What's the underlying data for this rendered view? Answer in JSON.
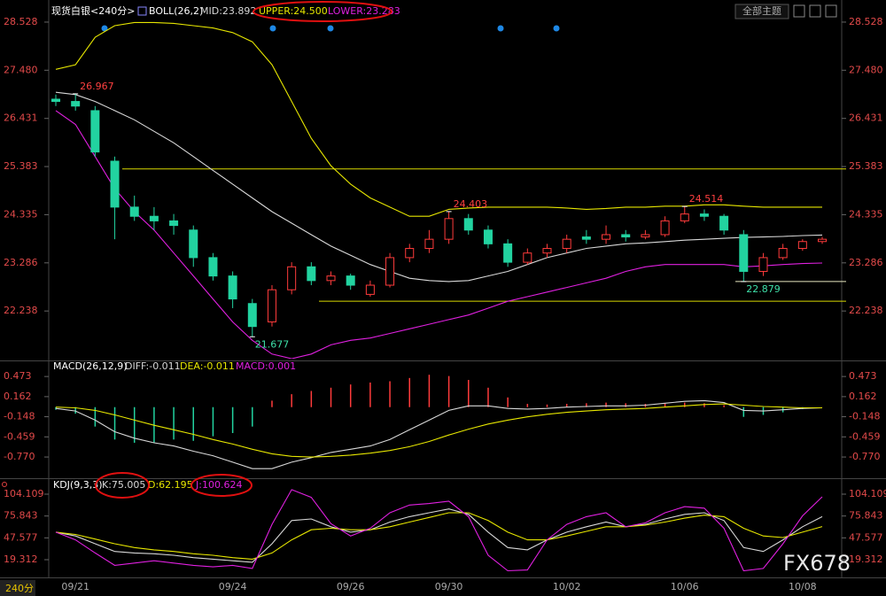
{
  "header": {
    "symbol": "现货白银<240分>",
    "button": "全部主题"
  },
  "period_label": "240分",
  "watermark": "FX678",
  "chart_data": [
    {
      "type": "candlestick",
      "title": "BOLL(26,2)",
      "categories": [
        null,
        "09/21",
        null,
        null,
        null,
        null,
        null,
        null,
        null,
        "09/24",
        null,
        null,
        null,
        null,
        null,
        "09/26",
        null,
        null,
        null,
        null,
        "09/30",
        null,
        null,
        null,
        null,
        null,
        "10/02",
        null,
        null,
        null,
        null,
        null,
        "10/06",
        null,
        null,
        null,
        null,
        null,
        "10/08",
        null
      ],
      "open": [
        26.85,
        26.8,
        26.6,
        25.5,
        24.5,
        24.3,
        24.2,
        24.0,
        23.4,
        23.0,
        22.4,
        22.0,
        22.7,
        23.2,
        22.9,
        23.0,
        22.6,
        22.8,
        23.4,
        23.6,
        23.8,
        24.25,
        24.0,
        23.7,
        23.3,
        23.5,
        23.6,
        23.85,
        23.8,
        23.9,
        23.85,
        23.9,
        24.2,
        24.35,
        24.3,
        23.9,
        23.1,
        23.4,
        23.6,
        23.75
      ],
      "high": [
        26.95,
        26.967,
        26.7,
        25.6,
        24.75,
        24.5,
        24.35,
        24.1,
        23.5,
        23.1,
        22.5,
        22.8,
        23.3,
        23.3,
        23.1,
        23.05,
        22.9,
        23.5,
        23.7,
        24.0,
        24.403,
        24.35,
        24.1,
        23.8,
        23.6,
        23.7,
        23.9,
        24.0,
        24.1,
        24.0,
        24.0,
        24.3,
        24.514,
        24.45,
        24.35,
        24.0,
        23.5,
        23.7,
        23.8,
        23.85
      ],
      "low": [
        26.7,
        26.6,
        25.6,
        23.8,
        24.2,
        24.0,
        23.9,
        23.2,
        22.9,
        22.3,
        21.677,
        21.9,
        22.6,
        22.8,
        22.8,
        22.7,
        22.55,
        22.75,
        23.3,
        23.5,
        23.7,
        23.9,
        23.6,
        23.2,
        23.25,
        23.4,
        23.5,
        23.7,
        23.7,
        23.75,
        23.8,
        23.85,
        24.15,
        24.2,
        23.9,
        22.879,
        23.0,
        23.35,
        23.55,
        23.7
      ],
      "close": [
        26.8,
        26.7,
        25.7,
        24.5,
        24.3,
        24.2,
        24.1,
        23.4,
        23.0,
        22.5,
        21.9,
        22.7,
        23.2,
        22.9,
        23.0,
        22.8,
        22.8,
        23.4,
        23.6,
        23.8,
        24.25,
        24.0,
        23.7,
        23.3,
        23.5,
        23.6,
        23.8,
        23.8,
        23.9,
        23.85,
        23.9,
        24.2,
        24.35,
        24.3,
        24.0,
        23.1,
        23.4,
        23.6,
        23.75,
        23.8
      ],
      "up_color": "#ff3b3b",
      "down_color": "#22d3a0",
      "series": [
        {
          "name": "MID:23.892",
          "color": "#d8d8d8",
          "values": [
            27.0,
            26.95,
            26.8,
            26.6,
            26.4,
            26.15,
            25.9,
            25.6,
            25.3,
            25.0,
            24.7,
            24.4,
            24.15,
            23.9,
            23.65,
            23.45,
            23.25,
            23.1,
            22.95,
            22.9,
            22.88,
            22.9,
            23.0,
            23.1,
            23.25,
            23.4,
            23.5,
            23.6,
            23.65,
            23.7,
            23.72,
            23.75,
            23.78,
            23.8,
            23.82,
            23.84,
            23.85,
            23.86,
            23.88,
            23.892
          ]
        },
        {
          "name": "UPPER:24.500",
          "color": "#e6e600",
          "values": [
            27.5,
            27.6,
            28.2,
            28.45,
            28.52,
            28.52,
            28.5,
            28.45,
            28.4,
            28.3,
            28.1,
            27.6,
            26.8,
            26.0,
            25.4,
            25.0,
            24.7,
            24.5,
            24.3,
            24.3,
            24.45,
            24.48,
            24.5,
            24.5,
            24.5,
            24.5,
            24.48,
            24.45,
            24.47,
            24.5,
            24.5,
            24.52,
            24.52,
            24.55,
            24.55,
            24.52,
            24.5,
            24.5,
            24.5,
            24.5
          ]
        },
        {
          "name": "LOWER:23.283",
          "color": "#e020e0",
          "values": [
            26.6,
            26.3,
            25.6,
            24.9,
            24.4,
            24.0,
            23.5,
            23.0,
            22.5,
            22.0,
            21.6,
            21.3,
            21.2,
            21.3,
            21.5,
            21.6,
            21.65,
            21.75,
            21.85,
            21.95,
            22.05,
            22.15,
            22.3,
            22.45,
            22.55,
            22.65,
            22.75,
            22.85,
            22.95,
            23.1,
            23.2,
            23.25,
            23.25,
            23.25,
            23.25,
            23.2,
            23.22,
            23.25,
            23.27,
            23.283
          ]
        }
      ],
      "reference_lines": [
        25.33,
        22.45,
        22.879
      ],
      "ylim": [
        21.2,
        28.72
      ],
      "yticks": [
        28.528,
        {
          "value": 27.48,
          "label": "27.480"
        },
        26.431,
        25.383,
        24.335,
        23.286,
        22.238
      ]
    },
    {
      "type": "macd",
      "title": "MACD(26,12,9)",
      "series": [
        {
          "name": "DIFF:-0.011",
          "color": "#d8d8d8",
          "values": [
            -0.02,
            -0.06,
            -0.2,
            -0.38,
            -0.48,
            -0.55,
            -0.6,
            -0.68,
            -0.75,
            -0.85,
            -0.95,
            -0.95,
            -0.85,
            -0.78,
            -0.7,
            -0.65,
            -0.6,
            -0.5,
            -0.35,
            -0.2,
            -0.05,
            0.02,
            0.02,
            -0.02,
            -0.03,
            -0.02,
            0.0,
            0.01,
            0.02,
            0.02,
            0.03,
            0.06,
            0.09,
            0.1,
            0.07,
            -0.05,
            -0.06,
            -0.04,
            -0.02,
            -0.011
          ]
        },
        {
          "name": "DEA:-0.011",
          "color": "#e6e600",
          "values": [
            0.0,
            -0.01,
            -0.05,
            -0.12,
            -0.2,
            -0.28,
            -0.35,
            -0.42,
            -0.5,
            -0.57,
            -0.65,
            -0.72,
            -0.76,
            -0.77,
            -0.76,
            -0.74,
            -0.71,
            -0.67,
            -0.61,
            -0.53,
            -0.43,
            -0.34,
            -0.26,
            -0.2,
            -0.15,
            -0.11,
            -0.08,
            -0.06,
            -0.04,
            -0.03,
            -0.02,
            0.0,
            0.02,
            0.04,
            0.05,
            0.03,
            0.01,
            0.0,
            -0.01,
            -0.011
          ]
        }
      ],
      "bars": {
        "name": "MACD:0.001",
        "color": "#e020e0",
        "up_color": "#ff3b3b",
        "down_color": "#22d3a0",
        "values": [
          -0.04,
          -0.1,
          -0.3,
          -0.5,
          -0.55,
          -0.55,
          -0.5,
          -0.52,
          -0.45,
          -0.4,
          -0.3,
          0.1,
          0.2,
          0.25,
          0.3,
          0.35,
          0.38,
          0.4,
          0.45,
          0.5,
          0.48,
          0.42,
          0.3,
          0.15,
          0.05,
          0.04,
          0.05,
          0.06,
          0.07,
          0.06,
          0.05,
          0.06,
          0.07,
          0.06,
          0.03,
          -0.15,
          -0.12,
          -0.08,
          -0.03,
          0.001
        ]
      },
      "ylim": [
        -1.07,
        0.68
      ],
      "yticks": [
        0.473,
        0.162,
        -0.148,
        -0.459,
        {
          "value": -0.77,
          "label": "-0.770"
        }
      ]
    },
    {
      "type": "line",
      "title": "KDJ(9,3,3)",
      "series": [
        {
          "name": "K:75.005",
          "color": "#d8d8d8",
          "values": [
            55,
            50,
            40,
            30,
            28,
            27,
            25,
            22,
            20,
            18,
            16,
            40,
            70,
            72,
            62,
            55,
            58,
            68,
            75,
            80,
            85,
            78,
            55,
            35,
            32,
            45,
            55,
            62,
            68,
            62,
            65,
            72,
            78,
            80,
            70,
            35,
            30,
            45,
            62,
            75.005
          ]
        },
        {
          "name": "D:62.195",
          "color": "#e6e600",
          "values": [
            55,
            52,
            46,
            40,
            35,
            32,
            30,
            27,
            25,
            22,
            20,
            28,
            45,
            58,
            60,
            58,
            58,
            62,
            68,
            74,
            80,
            80,
            70,
            55,
            45,
            45,
            50,
            56,
            62,
            62,
            64,
            68,
            73,
            77,
            75,
            60,
            50,
            48,
            55,
            62.195
          ]
        },
        {
          "name": "J:100.624",
          "color": "#e020e0",
          "values": [
            55,
            45,
            28,
            12,
            15,
            18,
            15,
            12,
            10,
            12,
            8,
            65,
            110,
            100,
            66,
            50,
            60,
            80,
            90,
            92,
            95,
            75,
            25,
            5,
            6,
            45,
            65,
            75,
            80,
            62,
            67,
            80,
            88,
            86,
            60,
            5,
            8,
            40,
            76,
            100.624
          ]
        }
      ],
      "ylim": [
        -1.3,
        119
      ],
      "yticks": [
        104.109,
        75.843,
        47.577,
        19.312
      ]
    }
  ]
}
